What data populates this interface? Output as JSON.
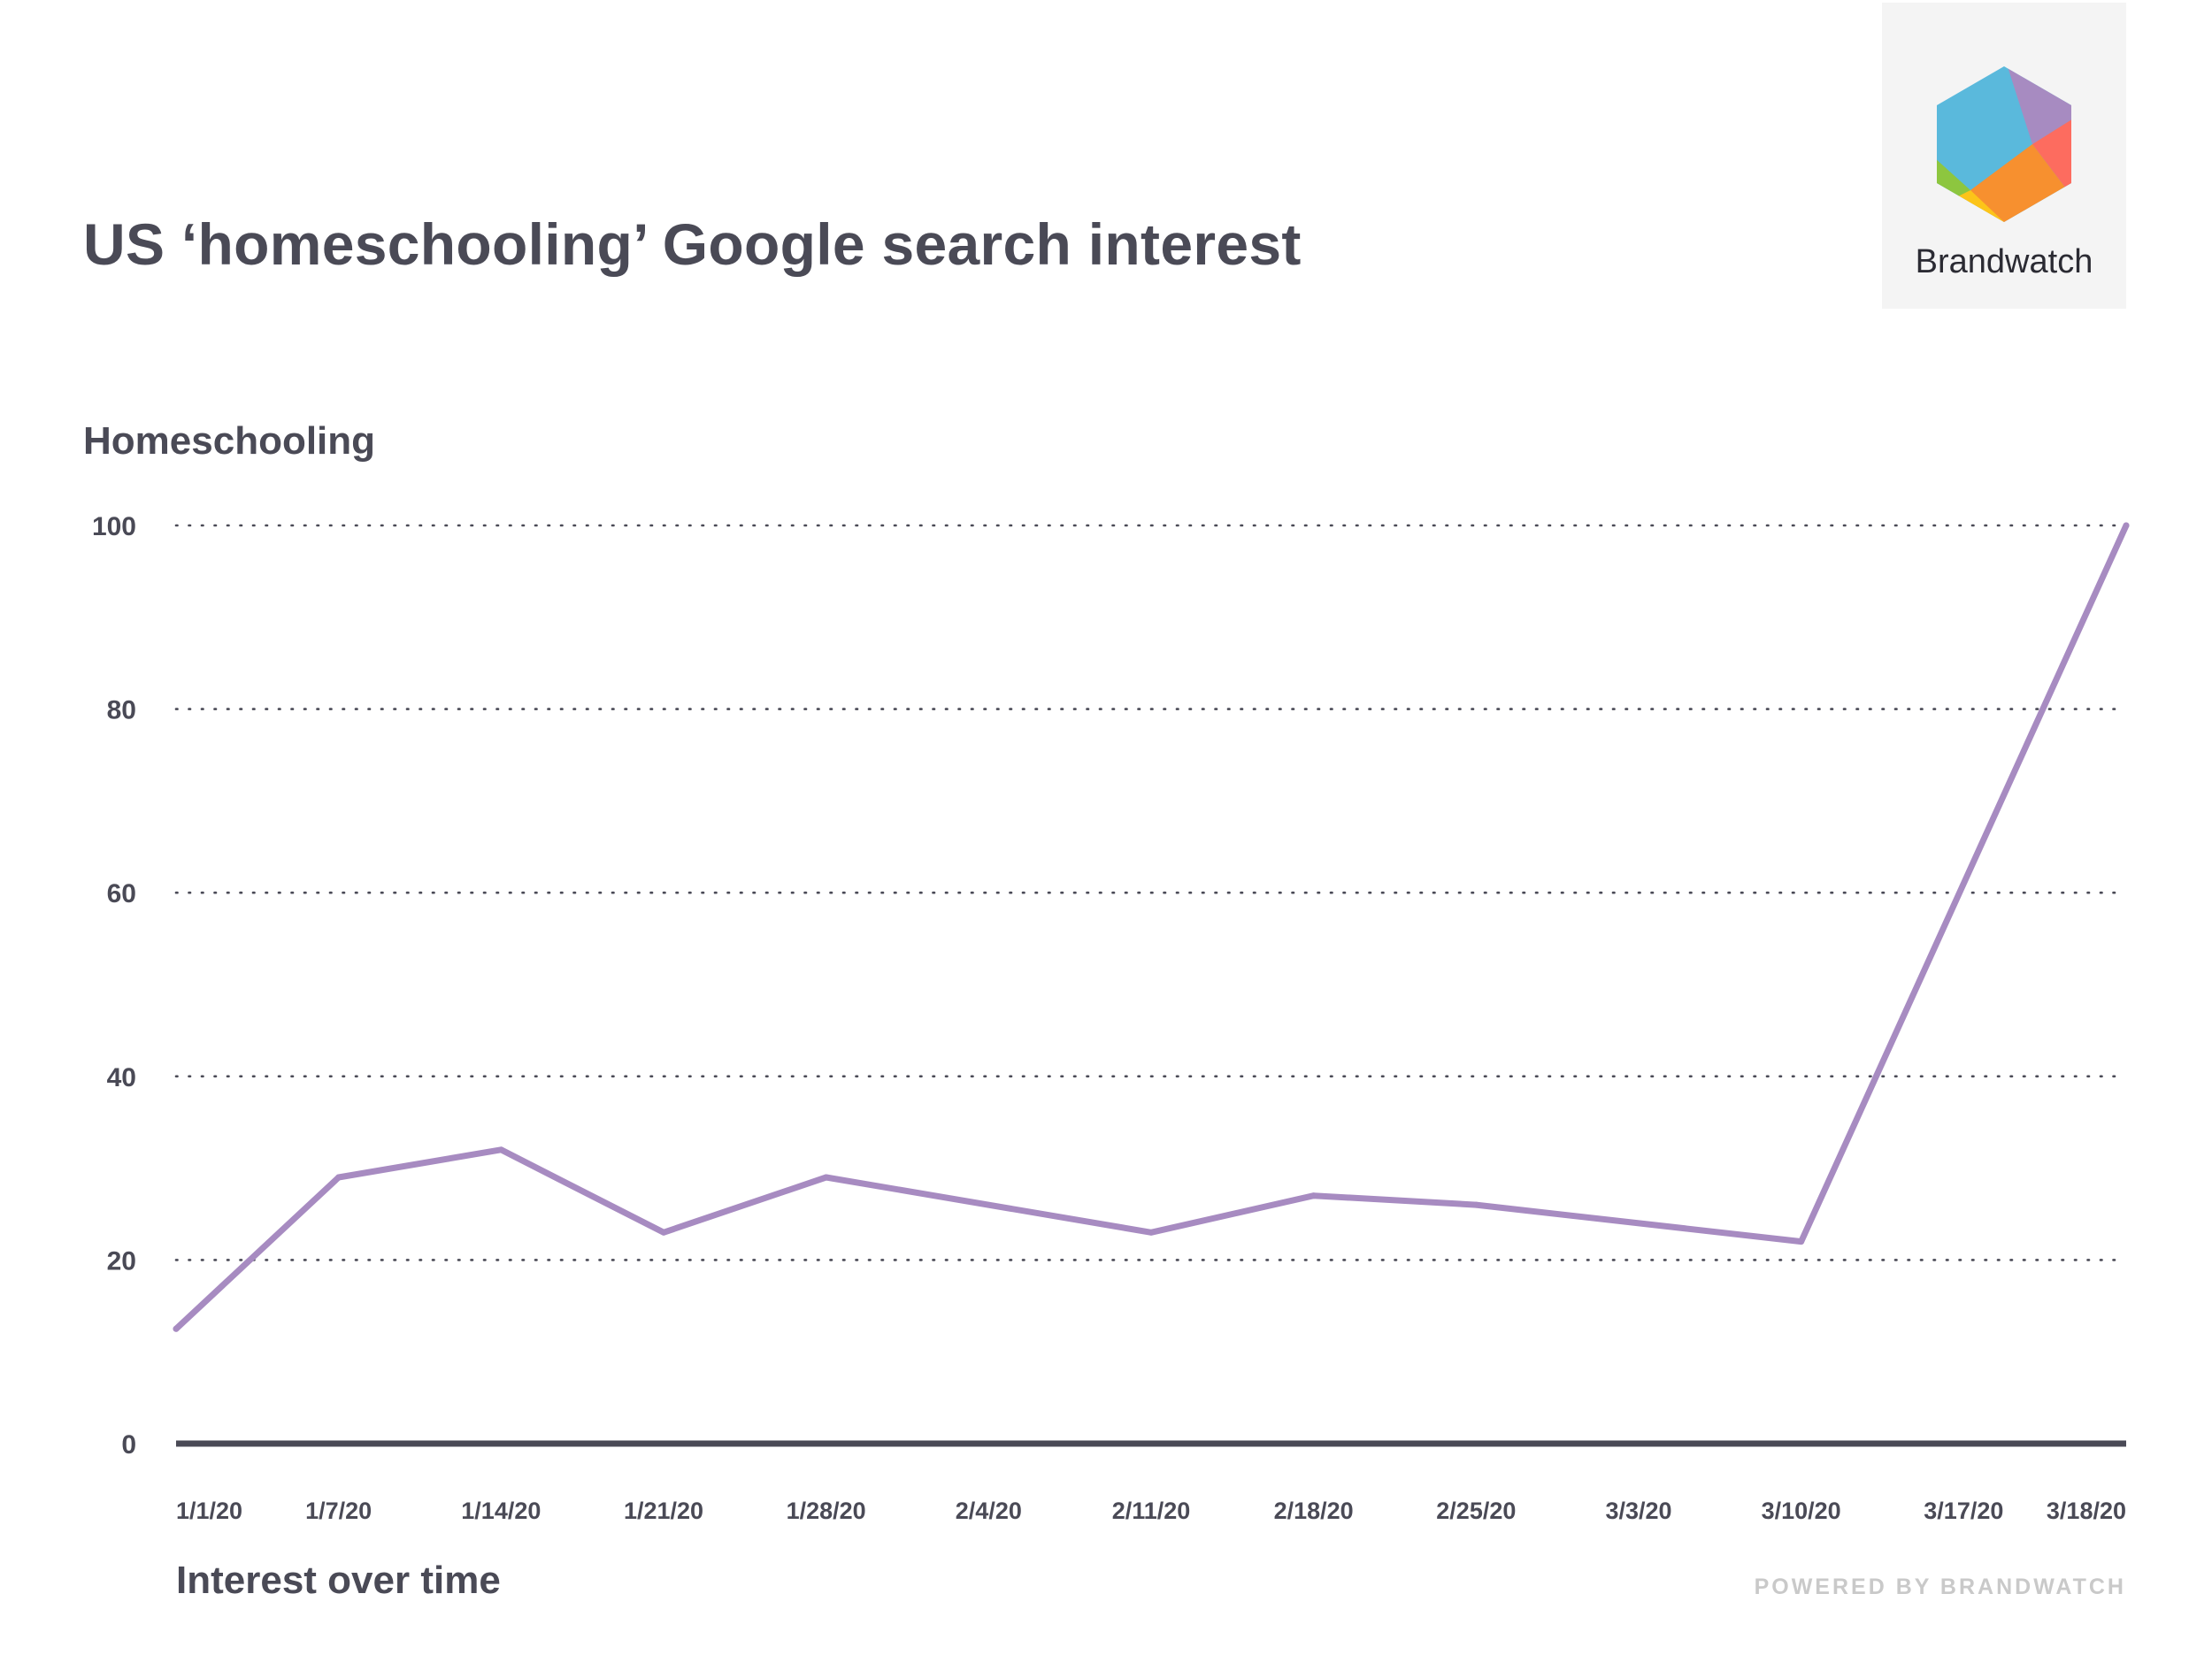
{
  "header": {
    "title": "US ‘homeschooling’ Google search interest"
  },
  "logo": {
    "name": "Brandwatch",
    "icon": "brandwatch-hexagon-logo",
    "colors": [
      "#5ab9dc",
      "#a78bc1",
      "#fd6c5f",
      "#f7902f",
      "#fcc419",
      "#8dc63f"
    ]
  },
  "footer": {
    "powered_by": "POWERED BY BRANDWATCH"
  },
  "colors": {
    "line": "#a78bc1",
    "axis": "#4a4a56",
    "text": "#4a4a56",
    "grid": "#4a4a56"
  },
  "chart_data": {
    "type": "line",
    "title": "US ‘homeschooling’ Google search interest",
    "ylabel": "Homeschooling",
    "xlabel": "Interest over time",
    "ylim": [
      0,
      100
    ],
    "yticks": [
      0,
      20,
      40,
      60,
      80,
      100
    ],
    "grid": "horizontal dotted",
    "categories": [
      "1/1/20",
      "1/7/20",
      "1/14/20",
      "1/21/20",
      "1/28/20",
      "2/4/20",
      "2/11/20",
      "2/18/20",
      "2/25/20",
      "3/3/20",
      "3/10/20",
      "3/17/20",
      "3/18/20"
    ],
    "series": [
      {
        "values": [
          12.5,
          29,
          32,
          23,
          29,
          null,
          23,
          27,
          26,
          null,
          22,
          null,
          100
        ],
        "points": [
          {
            "x": "1/1/20",
            "y": 12.5
          },
          {
            "x": "1/7/20",
            "y": 29
          },
          {
            "x": "1/14/20",
            "y": 32
          },
          {
            "x": "1/21/20",
            "y": 23
          },
          {
            "x": "1/28/20",
            "y": 29
          },
          {
            "x": "2/11/20",
            "y": 23
          },
          {
            "x": "2/18/20",
            "y": 27
          },
          {
            "x": "2/25/20",
            "y": 26
          },
          {
            "x": "3/10/20",
            "y": 22
          },
          {
            "x": "3/18/20",
            "y": 100
          }
        ]
      }
    ]
  }
}
